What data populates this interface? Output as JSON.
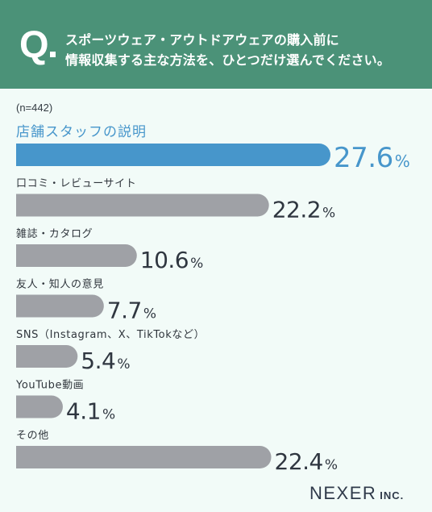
{
  "header": {
    "q_label": "Q",
    "question_line1": "スポーツウェア・アウトドアウェアの購入前に",
    "question_line2": "情報収集する主な方法を、ひとつだけ選んでください。",
    "bg_color": "#4b9278"
  },
  "sample_label": "(n=442)",
  "brand": {
    "name": "NEXER",
    "suffix": "INC."
  },
  "chart_data": {
    "type": "bar",
    "orientation": "horizontal",
    "categories": [
      "店舗スタッフの説明",
      "口コミ・レビューサイト",
      "雑誌・カタログ",
      "友人・知人の意見",
      "SNS（Instagram、X、TikTokなど）",
      "YouTube動画",
      "その他"
    ],
    "values": [
      27.6,
      22.2,
      10.6,
      7.7,
      5.4,
      4.1,
      22.4
    ],
    "value_suffix": "%",
    "highlight_index": 0,
    "highlight_color": "#4796cb",
    "bar_color": "#9fa1a6",
    "title": "",
    "xlabel": "",
    "ylabel": "",
    "xlim": [
      0,
      27.6
    ]
  }
}
